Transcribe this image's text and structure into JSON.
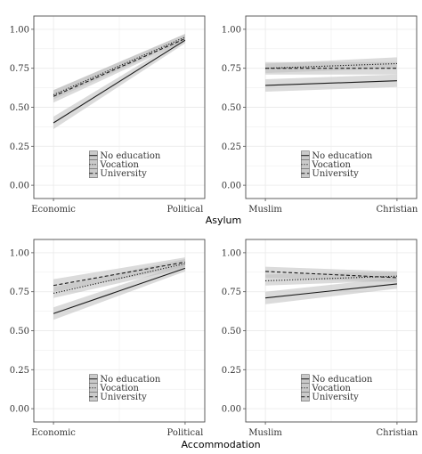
{
  "figure": {
    "row_titles": [
      "Asylum",
      "Accommodation"
    ]
  },
  "legend": {
    "entries": [
      {
        "label": "No education",
        "dash": "solid"
      },
      {
        "label": "Vocation",
        "dash": "dotted"
      },
      {
        "label": "University",
        "dash": "dashed"
      }
    ]
  },
  "colors": {
    "line": "#1a1a1a",
    "ribbon": "#bdbdbd",
    "grid": "#ebebeb",
    "frame": "#4d4d4d",
    "background": "#ffffff"
  },
  "chart_data": [
    {
      "type": "line",
      "row_title": "Asylum",
      "categories": [
        "Economic",
        "Political"
      ],
      "ylim": [
        0,
        1
      ],
      "yticks": [
        "0.00",
        "0.25",
        "0.50",
        "0.75",
        "1.00"
      ],
      "grid": true,
      "legend_position": "bottom-center",
      "series": [
        {
          "name": "No education",
          "values": [
            0.4,
            0.93
          ],
          "ci_low": [
            0.36,
            0.91
          ],
          "ci_high": [
            0.44,
            0.95
          ]
        },
        {
          "name": "Vocation",
          "values": [
            0.58,
            0.95
          ],
          "ci_low": [
            0.55,
            0.93
          ],
          "ci_high": [
            0.61,
            0.97
          ]
        },
        {
          "name": "University",
          "values": [
            0.57,
            0.94
          ],
          "ci_low": [
            0.53,
            0.92
          ],
          "ci_high": [
            0.61,
            0.97
          ]
        }
      ]
    },
    {
      "type": "line",
      "row_title": "Asylum",
      "categories": [
        "Muslim",
        "Christian"
      ],
      "ylim": [
        0,
        1
      ],
      "yticks": [
        "0.00",
        "0.25",
        "0.50",
        "0.75",
        "1.00"
      ],
      "grid": true,
      "legend_position": "bottom-center",
      "series": [
        {
          "name": "No education",
          "values": [
            0.64,
            0.67
          ],
          "ci_low": [
            0.6,
            0.63
          ],
          "ci_high": [
            0.68,
            0.71
          ]
        },
        {
          "name": "Vocation",
          "values": [
            0.75,
            0.78
          ],
          "ci_low": [
            0.72,
            0.75
          ],
          "ci_high": [
            0.78,
            0.82
          ]
        },
        {
          "name": "University",
          "values": [
            0.75,
            0.75
          ],
          "ci_low": [
            0.71,
            0.71
          ],
          "ci_high": [
            0.79,
            0.79
          ]
        }
      ]
    },
    {
      "type": "line",
      "row_title": "Accommodation",
      "categories": [
        "Economic",
        "Political"
      ],
      "ylim": [
        0,
        1
      ],
      "yticks": [
        "0.00",
        "0.25",
        "0.50",
        "0.75",
        "1.00"
      ],
      "grid": true,
      "legend_position": "bottom-center",
      "series": [
        {
          "name": "No education",
          "values": [
            0.61,
            0.9
          ],
          "ci_low": [
            0.57,
            0.88
          ],
          "ci_high": [
            0.65,
            0.93
          ]
        },
        {
          "name": "Vocation",
          "values": [
            0.74,
            0.93
          ],
          "ci_low": [
            0.71,
            0.9
          ],
          "ci_high": [
            0.78,
            0.96
          ]
        },
        {
          "name": "University",
          "values": [
            0.79,
            0.94
          ],
          "ci_low": [
            0.75,
            0.91
          ],
          "ci_high": [
            0.83,
            0.97
          ]
        }
      ]
    },
    {
      "type": "line",
      "row_title": "Accommodation",
      "categories": [
        "Muslim",
        "Christian"
      ],
      "ylim": [
        0,
        1
      ],
      "yticks": [
        "0.00",
        "0.25",
        "0.50",
        "0.75",
        "1.00"
      ],
      "grid": true,
      "legend_position": "bottom-center",
      "series": [
        {
          "name": "No education",
          "values": [
            0.71,
            0.8
          ],
          "ci_low": [
            0.67,
            0.77
          ],
          "ci_high": [
            0.75,
            0.84
          ]
        },
        {
          "name": "Vocation",
          "values": [
            0.82,
            0.85
          ],
          "ci_low": [
            0.79,
            0.82
          ],
          "ci_high": [
            0.86,
            0.88
          ]
        },
        {
          "name": "University",
          "values": [
            0.88,
            0.84
          ],
          "ci_low": [
            0.84,
            0.81
          ],
          "ci_high": [
            0.91,
            0.88
          ]
        }
      ]
    }
  ]
}
